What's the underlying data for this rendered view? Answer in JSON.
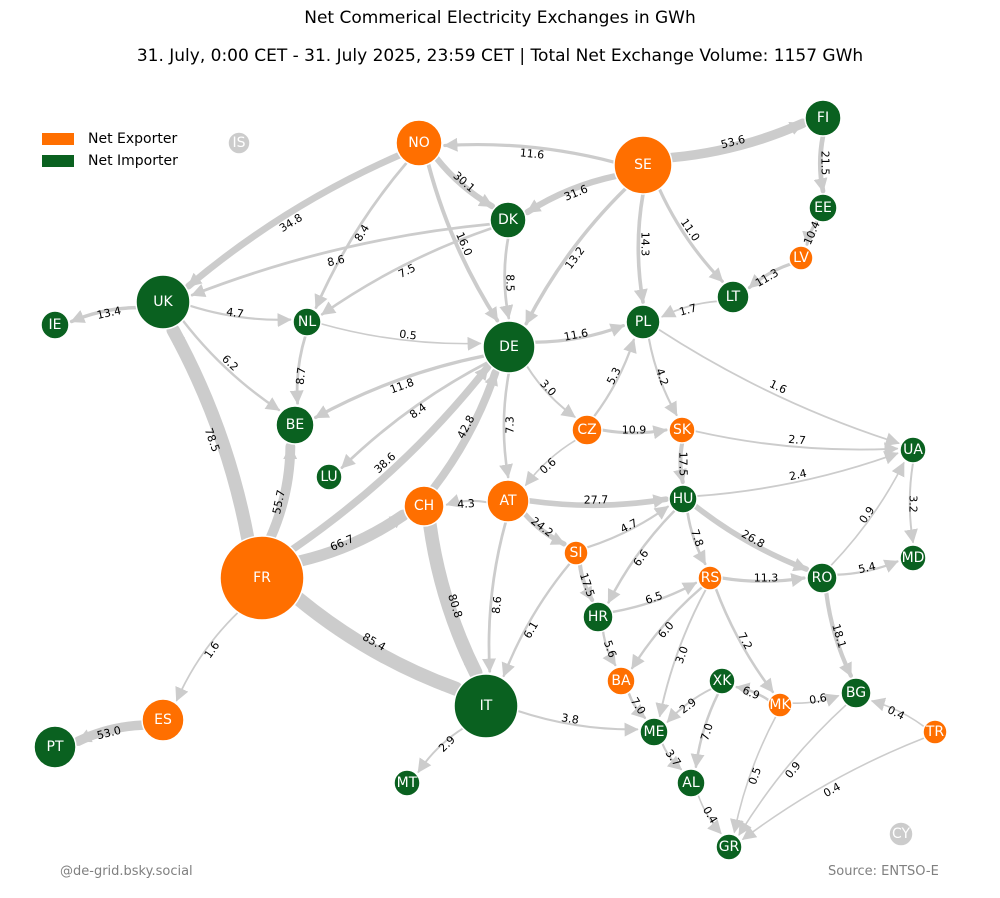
{
  "title": "Net Commerical Electricity Exchanges in GWh",
  "subtitle": "31. July, 0:00 CET - 31. July 2025, 23:59 CET | Total Net Exchange Volume: 1157 GWh",
  "legend": {
    "exporter_label": "Net Exporter",
    "importer_label": "Net Importer"
  },
  "colors": {
    "exporter": "#ff6f00",
    "importer": "#0a6120",
    "inactive": "#cccccc",
    "edge": "#cccccc"
  },
  "credit": "@de-grid.bsky.social",
  "source": "Source: ENTSO-E",
  "nodes": [
    {
      "id": "IS",
      "role": "inactive"
    },
    {
      "id": "NO",
      "role": "exporter"
    },
    {
      "id": "SE",
      "role": "exporter"
    },
    {
      "id": "FI",
      "role": "importer"
    },
    {
      "id": "EE",
      "role": "importer"
    },
    {
      "id": "LV",
      "role": "exporter"
    },
    {
      "id": "LT",
      "role": "importer"
    },
    {
      "id": "DK",
      "role": "importer"
    },
    {
      "id": "UK",
      "role": "importer"
    },
    {
      "id": "IE",
      "role": "importer"
    },
    {
      "id": "NL",
      "role": "importer"
    },
    {
      "id": "DE",
      "role": "importer"
    },
    {
      "id": "PL",
      "role": "importer"
    },
    {
      "id": "BE",
      "role": "importer"
    },
    {
      "id": "LU",
      "role": "importer"
    },
    {
      "id": "CZ",
      "role": "exporter"
    },
    {
      "id": "SK",
      "role": "exporter"
    },
    {
      "id": "UA",
      "role": "importer"
    },
    {
      "id": "FR",
      "role": "exporter"
    },
    {
      "id": "CH",
      "role": "exporter"
    },
    {
      "id": "AT",
      "role": "exporter"
    },
    {
      "id": "HU",
      "role": "importer"
    },
    {
      "id": "SI",
      "role": "exporter"
    },
    {
      "id": "MD",
      "role": "importer"
    },
    {
      "id": "HR",
      "role": "importer"
    },
    {
      "id": "RS",
      "role": "exporter"
    },
    {
      "id": "RO",
      "role": "importer"
    },
    {
      "id": "BA",
      "role": "exporter"
    },
    {
      "id": "ES",
      "role": "exporter"
    },
    {
      "id": "PT",
      "role": "importer"
    },
    {
      "id": "IT",
      "role": "importer"
    },
    {
      "id": "XK",
      "role": "importer"
    },
    {
      "id": "MK",
      "role": "exporter"
    },
    {
      "id": "BG",
      "role": "importer"
    },
    {
      "id": "TR",
      "role": "exporter"
    },
    {
      "id": "ME",
      "role": "importer"
    },
    {
      "id": "MT",
      "role": "importer"
    },
    {
      "id": "AL",
      "role": "importer"
    },
    {
      "id": "GR",
      "role": "importer"
    },
    {
      "id": "CY",
      "role": "inactive"
    }
  ],
  "flows": [
    {
      "from": "SE",
      "to": "FI",
      "value": "53.6"
    },
    {
      "from": "SE",
      "to": "NO",
      "value": "11.6"
    },
    {
      "from": "SE",
      "to": "DK",
      "value": "31.6"
    },
    {
      "from": "SE",
      "to": "DE",
      "value": "13.2"
    },
    {
      "from": "SE",
      "to": "PL",
      "value": "14.3"
    },
    {
      "from": "SE",
      "to": "LT",
      "value": "11.0"
    },
    {
      "from": "FI",
      "to": "EE",
      "value": "21.5"
    },
    {
      "from": "EE",
      "to": "LV",
      "value": "10.4"
    },
    {
      "from": "LV",
      "to": "LT",
      "value": "11.3"
    },
    {
      "from": "LT",
      "to": "PL",
      "value": "1.7"
    },
    {
      "from": "NO",
      "to": "UK",
      "value": "34.8"
    },
    {
      "from": "NO",
      "to": "DK",
      "value": "30.1"
    },
    {
      "from": "NO",
      "to": "NL",
      "value": "8.4"
    },
    {
      "from": "NO",
      "to": "DE",
      "value": "16.0"
    },
    {
      "from": "DK",
      "to": "UK",
      "value": "8.6"
    },
    {
      "from": "DK",
      "to": "NL",
      "value": "7.5"
    },
    {
      "from": "DK",
      "to": "DE",
      "value": "8.5"
    },
    {
      "from": "UK",
      "to": "IE",
      "value": "13.4"
    },
    {
      "from": "UK",
      "to": "NL",
      "value": "4.7"
    },
    {
      "from": "UK",
      "to": "BE",
      "value": "6.2"
    },
    {
      "from": "NL",
      "to": "DE",
      "value": "0.5"
    },
    {
      "from": "NL",
      "to": "BE",
      "value": "8.7"
    },
    {
      "from": "DE",
      "to": "PL",
      "value": "11.6"
    },
    {
      "from": "DE",
      "to": "BE",
      "value": "11.8"
    },
    {
      "from": "DE",
      "to": "LU",
      "value": "8.4"
    },
    {
      "from": "DE",
      "to": "CZ",
      "value": "3.0"
    },
    {
      "from": "DE",
      "to": "AT",
      "value": "7.3"
    },
    {
      "from": "CZ",
      "to": "PL",
      "value": "5.3"
    },
    {
      "from": "CZ",
      "to": "SK",
      "value": "10.9"
    },
    {
      "from": "CZ",
      "to": "AT",
      "value": "0.6"
    },
    {
      "from": "PL",
      "to": "SK",
      "value": "4.2"
    },
    {
      "from": "PL",
      "to": "UA",
      "value": "1.6"
    },
    {
      "from": "SK",
      "to": "UA",
      "value": "2.7"
    },
    {
      "from": "SK",
      "to": "HU",
      "value": "17.5"
    },
    {
      "from": "HU",
      "to": "UA",
      "value": "2.4"
    },
    {
      "from": "UA",
      "to": "MD",
      "value": "3.2"
    },
    {
      "from": "RO",
      "to": "UA",
      "value": "0.9"
    },
    {
      "from": "RO",
      "to": "MD",
      "value": "5.4"
    },
    {
      "from": "FR",
      "to": "UK",
      "value": "78.5"
    },
    {
      "from": "FR",
      "to": "BE",
      "value": "55.7"
    },
    {
      "from": "FR",
      "to": "DE",
      "value": "38.6"
    },
    {
      "from": "FR",
      "to": "CH",
      "value": "66.7"
    },
    {
      "from": "FR",
      "to": "IT",
      "value": "85.4"
    },
    {
      "from": "FR",
      "to": "ES",
      "value": "1.6"
    },
    {
      "from": "CH",
      "to": "DE",
      "value": "42.8"
    },
    {
      "from": "CH",
      "to": "IT",
      "value": "80.8"
    },
    {
      "from": "AT",
      "to": "CH",
      "value": "4.3"
    },
    {
      "from": "AT",
      "to": "HU",
      "value": "27.7"
    },
    {
      "from": "AT",
      "to": "SI",
      "value": "24.2"
    },
    {
      "from": "AT",
      "to": "IT",
      "value": "8.6"
    },
    {
      "from": "SI",
      "to": "HU",
      "value": "4.7"
    },
    {
      "from": "SI",
      "to": "HR",
      "value": "17.5"
    },
    {
      "from": "SI",
      "to": "IT",
      "value": "6.1"
    },
    {
      "from": "HU",
      "to": "HR",
      "value": "6.6"
    },
    {
      "from": "HU",
      "to": "RS",
      "value": "7.8"
    },
    {
      "from": "HU",
      "to": "RO",
      "value": "26.8"
    },
    {
      "from": "HR",
      "to": "RS",
      "value": "6.5"
    },
    {
      "from": "HR",
      "to": "BA",
      "value": "5.6"
    },
    {
      "from": "RS",
      "to": "RO",
      "value": "11.3"
    },
    {
      "from": "RS",
      "to": "BA",
      "value": "6.0"
    },
    {
      "from": "RS",
      "to": "ME",
      "value": "3.0"
    },
    {
      "from": "RS",
      "to": "MK",
      "value": "7.2"
    },
    {
      "from": "RO",
      "to": "BG",
      "value": "18.1"
    },
    {
      "from": "ES",
      "to": "PT",
      "value": "53.0"
    },
    {
      "from": "IT",
      "to": "MT",
      "value": "2.9"
    },
    {
      "from": "IT",
      "to": "ME",
      "value": "3.8"
    },
    {
      "from": "BA",
      "to": "ME",
      "value": "7.0"
    },
    {
      "from": "XK",
      "to": "ME",
      "value": "2.9"
    },
    {
      "from": "XK",
      "to": "AL",
      "value": "7.0"
    },
    {
      "from": "MK",
      "to": "XK",
      "value": "6.9"
    },
    {
      "from": "MK",
      "to": "BG",
      "value": "0.6"
    },
    {
      "from": "MK",
      "to": "GR",
      "value": "0.5"
    },
    {
      "from": "BG",
      "to": "GR",
      "value": "0.9"
    },
    {
      "from": "TR",
      "to": "BG",
      "value": "0.4"
    },
    {
      "from": "TR",
      "to": "GR",
      "value": "0.4"
    },
    {
      "from": "ME",
      "to": "AL",
      "value": "3.7"
    },
    {
      "from": "AL",
      "to": "GR",
      "value": "0.4"
    }
  ]
}
